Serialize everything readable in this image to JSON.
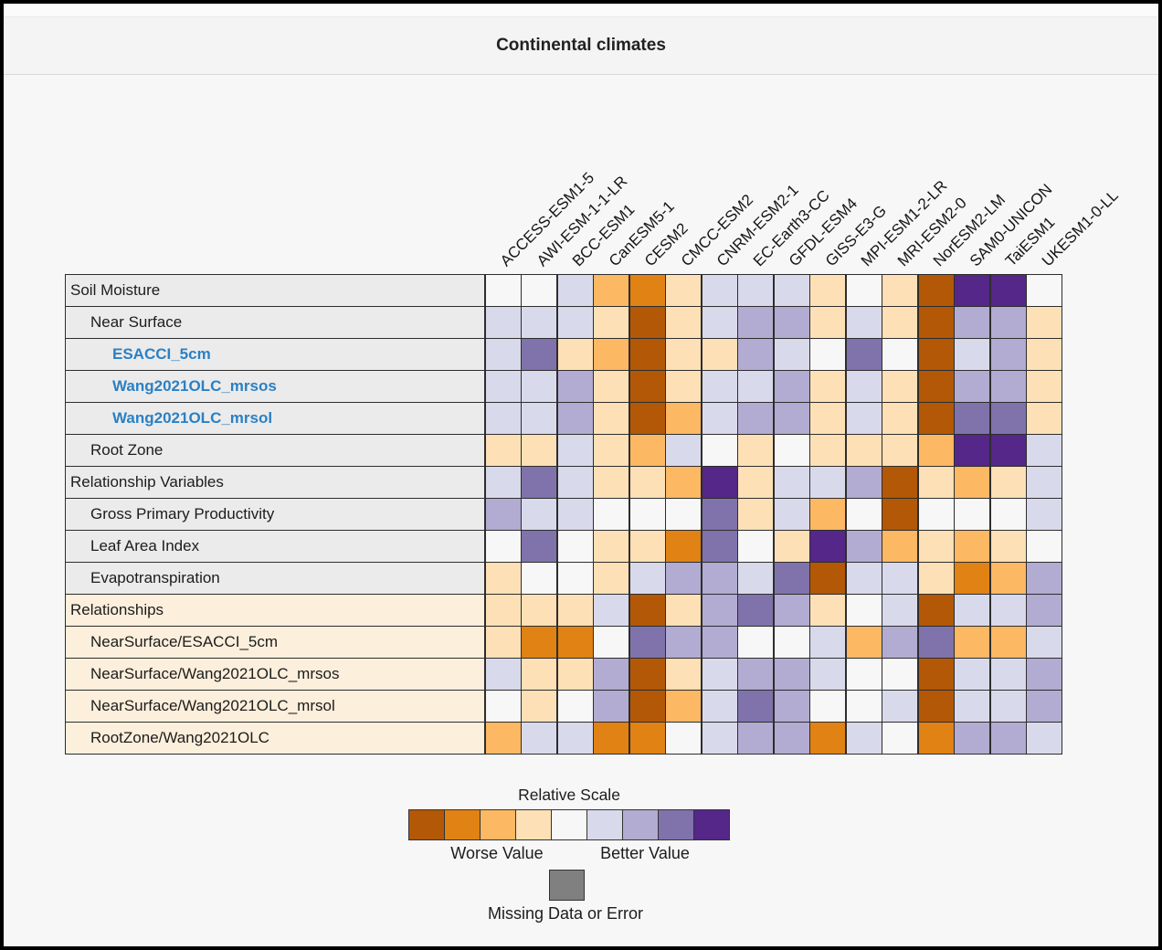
{
  "header": {
    "title": "Continental climates"
  },
  "colors": {
    "palette": [
      "#b35806",
      "#e08214",
      "#fdb863",
      "#fee0b6",
      "#f7f7f7",
      "#d8daeb",
      "#b2abd2",
      "#8073ac",
      "#542788"
    ],
    "missing": "#808080",
    "label_bg_gray": "#ebebeb",
    "label_bg_peach": "#fcefdc",
    "metric_link_blue": "#2b80c4",
    "grid_line": "#2d2d2d"
  },
  "legend": {
    "scale_title": "Relative Scale",
    "worse_label": "Worse Value",
    "better_label": "Better Value",
    "missing_label": "Missing Data or Error"
  },
  "chart_data": {
    "type": "heatmap",
    "title": "Continental climates",
    "value_encoding": "color bin 1=worst (dark orange) .. 9=best (dark purple), relative scale per row",
    "columns": [
      "ACCESS-ESM1-5",
      "AWI-ESM-1-1-LR",
      "BCC-ESM1",
      "CanESM5-1",
      "CESM2",
      "CMCC-ESM2",
      "CNRM-ESM2-1",
      "EC-Earth3-CC",
      "GFDL-ESM4",
      "GISS-E3-G",
      "MPI-ESM1-2-LR",
      "MRI-ESM2-0",
      "NorESM2-LM",
      "SAM0-UNICON",
      "TaiESM1",
      "UKESM1-0-LL"
    ],
    "rows": [
      {
        "label": "Soil Moisture",
        "indent": 0,
        "section": "gray",
        "link": false,
        "values": [
          5,
          5,
          6,
          3,
          2,
          4,
          6,
          6,
          6,
          4,
          5,
          4,
          1,
          9,
          9,
          5
        ]
      },
      {
        "label": "Near Surface",
        "indent": 1,
        "section": "gray",
        "link": false,
        "values": [
          6,
          6,
          6,
          4,
          1,
          4,
          6,
          7,
          7,
          4,
          6,
          4,
          1,
          7,
          7,
          4
        ]
      },
      {
        "label": "ESACCI_5cm",
        "indent": 2,
        "section": "gray",
        "link": true,
        "values": [
          6,
          8,
          4,
          3,
          1,
          4,
          4,
          7,
          6,
          5,
          8,
          5,
          1,
          6,
          7,
          4
        ]
      },
      {
        "label": "Wang2021OLC_mrsos",
        "indent": 2,
        "section": "gray",
        "link": true,
        "values": [
          6,
          6,
          7,
          4,
          1,
          4,
          6,
          6,
          7,
          4,
          6,
          4,
          1,
          7,
          7,
          4
        ]
      },
      {
        "label": "Wang2021OLC_mrsol",
        "indent": 2,
        "section": "gray",
        "link": true,
        "values": [
          6,
          6,
          7,
          4,
          1,
          3,
          6,
          7,
          7,
          4,
          6,
          4,
          1,
          8,
          8,
          4
        ]
      },
      {
        "label": "Root Zone",
        "indent": 1,
        "section": "gray",
        "link": false,
        "values": [
          4,
          4,
          6,
          4,
          3,
          6,
          5,
          4,
          5,
          4,
          4,
          4,
          3,
          9,
          9,
          6
        ]
      },
      {
        "label": "Relationship Variables",
        "indent": 0,
        "section": "gray",
        "link": false,
        "values": [
          6,
          8,
          6,
          4,
          4,
          3,
          9,
          4,
          6,
          6,
          7,
          1,
          4,
          3,
          4,
          6
        ]
      },
      {
        "label": "Gross Primary Productivity",
        "indent": 1,
        "section": "gray",
        "link": false,
        "values": [
          7,
          6,
          6,
          5,
          5,
          5,
          8,
          4,
          6,
          3,
          5,
          1,
          5,
          5,
          5,
          6
        ]
      },
      {
        "label": "Leaf Area Index",
        "indent": 1,
        "section": "gray",
        "link": false,
        "values": [
          5,
          8,
          5,
          4,
          4,
          2,
          8,
          5,
          4,
          9,
          7,
          3,
          4,
          3,
          4,
          5
        ]
      },
      {
        "label": "Evapotranspiration",
        "indent": 1,
        "section": "gray",
        "link": false,
        "values": [
          4,
          5,
          5,
          4,
          6,
          7,
          7,
          6,
          8,
          1,
          6,
          6,
          4,
          2,
          3,
          7
        ]
      },
      {
        "label": "Relationships",
        "indent": 0,
        "section": "peach",
        "link": false,
        "values": [
          4,
          4,
          4,
          6,
          1,
          4,
          7,
          8,
          7,
          4,
          5,
          6,
          1,
          6,
          6,
          7
        ]
      },
      {
        "label": "NearSurface/ESACCI_5cm",
        "indent": 1,
        "section": "peach",
        "link": false,
        "values": [
          4,
          2,
          2,
          5,
          8,
          7,
          7,
          5,
          5,
          6,
          3,
          7,
          8,
          3,
          3,
          6
        ]
      },
      {
        "label": "NearSurface/Wang2021OLC_mrsos",
        "indent": 1,
        "section": "peach",
        "link": false,
        "values": [
          6,
          4,
          4,
          7,
          1,
          4,
          6,
          7,
          7,
          6,
          5,
          5,
          1,
          6,
          6,
          7
        ]
      },
      {
        "label": "NearSurface/Wang2021OLC_mrsol",
        "indent": 1,
        "section": "peach",
        "link": false,
        "values": [
          5,
          4,
          5,
          7,
          1,
          3,
          6,
          8,
          7,
          5,
          5,
          6,
          1,
          6,
          6,
          7
        ]
      },
      {
        "label": "RootZone/Wang2021OLC",
        "indent": 1,
        "section": "peach",
        "link": false,
        "values": [
          3,
          6,
          6,
          2,
          2,
          5,
          6,
          7,
          7,
          2,
          6,
          5,
          2,
          7,
          7,
          6
        ]
      }
    ],
    "legend": {
      "title": "Relative Scale",
      "worse": "Worse Value",
      "better": "Better Value",
      "missing": "Missing Data or Error"
    }
  }
}
